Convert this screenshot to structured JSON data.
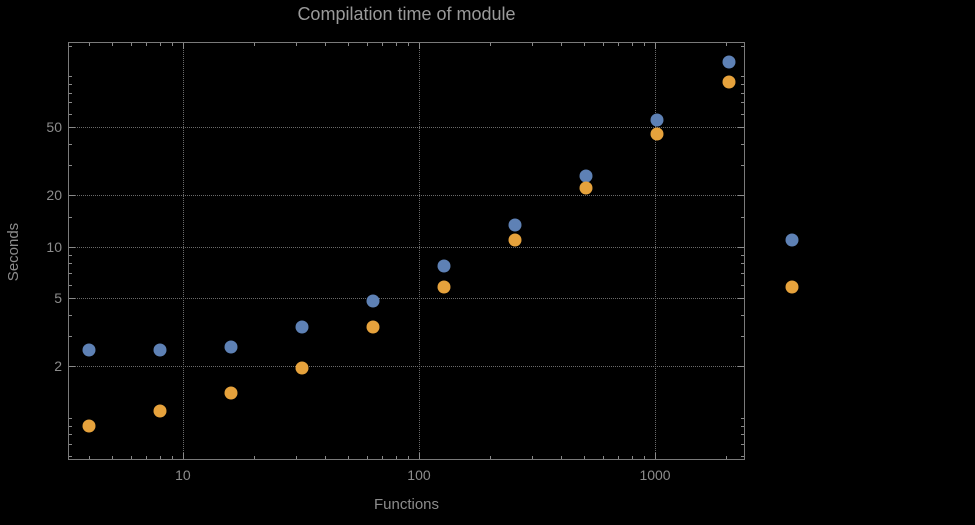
{
  "title": "Compilation time of module",
  "x_axis_label": "Functions",
  "y_axis_label": "Seconds",
  "colors": {
    "background": "#000000",
    "frame": "#7a7a7a",
    "grid": "#6a6a6a",
    "text": "#8c8c8c",
    "series_blue": "#5E81B5",
    "series_orange": "#E6A23C"
  },
  "chart_data": {
    "type": "scatter",
    "x_scale": "log",
    "y_scale": "log",
    "title": "Compilation time of module",
    "xlabel": "Functions",
    "ylabel": "Seconds",
    "grid": true,
    "legend_position": "right",
    "xlim": [
      3.26,
      2405
    ],
    "ylim": [
      0.567,
      158
    ],
    "x": [
      4,
      8,
      16,
      32,
      64,
      128,
      256,
      512,
      1024,
      2048
    ],
    "series": [
      {
        "name": "series-blue",
        "color": "#5E81B5",
        "values": [
          2.5,
          2.5,
          2.6,
          3.4,
          4.8,
          7.7,
          13.5,
          26,
          55,
          120
        ]
      },
      {
        "name": "series-orange",
        "color": "#E6A23C",
        "values": [
          0.9,
          1.1,
          1.4,
          1.95,
          3.4,
          5.8,
          11,
          22,
          46,
          92
        ]
      }
    ],
    "x_ticks": [
      {
        "value": 10,
        "label": "10"
      },
      {
        "value": 100,
        "label": "100"
      },
      {
        "value": 1000,
        "label": "1000"
      }
    ],
    "y_ticks": [
      {
        "value": 2,
        "label": "2"
      },
      {
        "value": 5,
        "label": "5"
      },
      {
        "value": 10,
        "label": "10"
      },
      {
        "value": 20,
        "label": "20"
      },
      {
        "value": 50,
        "label": "50"
      }
    ],
    "x_minor_ticks": [
      4,
      5,
      6,
      7,
      8,
      9,
      20,
      30,
      40,
      50,
      60,
      70,
      80,
      90,
      200,
      300,
      400,
      500,
      600,
      700,
      800,
      900,
      2000
    ],
    "y_minor_ticks": [
      0.6,
      0.7,
      0.8,
      0.9,
      1,
      3,
      4,
      6,
      7,
      8,
      9,
      15,
      30,
      40,
      60,
      70,
      80,
      90,
      100,
      150
    ]
  },
  "legend": {
    "items": [
      {
        "color": "#5E81B5",
        "label": ""
      },
      {
        "color": "#E6A23C",
        "label": ""
      }
    ]
  }
}
